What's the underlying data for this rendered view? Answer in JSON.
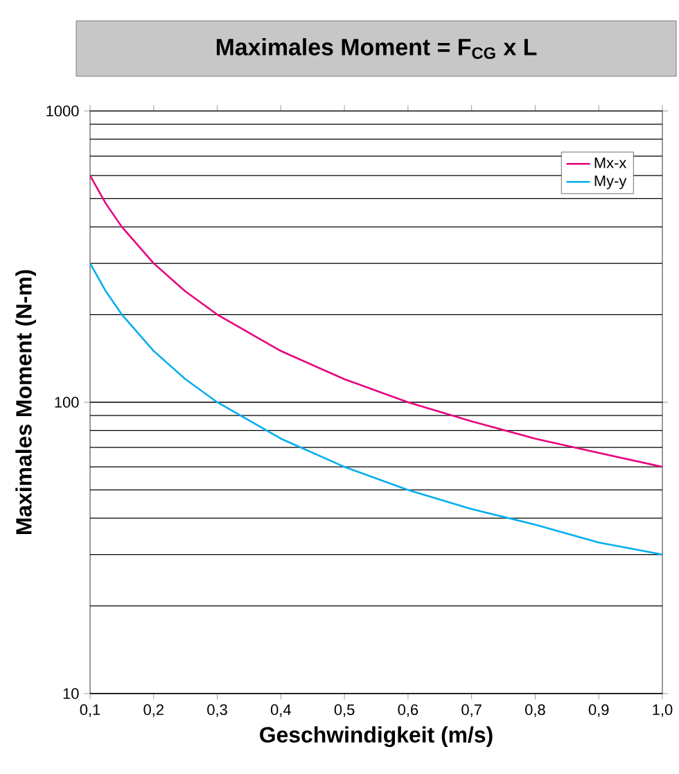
{
  "chart_data": {
    "type": "line",
    "title": "Maximales Moment = F$_{CG}$ x L",
    "xlabel": "Geschwindigkeit (m/s)",
    "ylabel": "Maximales Moment (N-m)",
    "x": [
      0.1,
      0.125,
      0.15,
      0.2,
      0.25,
      0.3,
      0.4,
      0.5,
      0.6,
      0.7,
      0.8,
      0.9,
      1.0
    ],
    "series": [
      {
        "name": "Mx-x",
        "color": "#e6007e",
        "values": [
          600,
          480,
          400,
          300,
          240,
          200,
          150,
          120,
          100,
          86,
          75,
          67,
          60
        ]
      },
      {
        "name": "My-y",
        "color": "#00aeef",
        "values": [
          300,
          240,
          200,
          150,
          120,
          100,
          75,
          60,
          50,
          43,
          38,
          33,
          30
        ]
      }
    ],
    "log": "y",
    "xlim": [
      0.1,
      1.0
    ],
    "ylim": [
      10,
      1000
    ],
    "xticks": [
      {
        "value": 0.1,
        "label": "0,1"
      },
      {
        "value": 0.2,
        "label": "0,2"
      },
      {
        "value": 0.3,
        "label": "0,3"
      },
      {
        "value": 0.4,
        "label": "0,4"
      },
      {
        "value": 0.5,
        "label": "0,5"
      },
      {
        "value": 0.6,
        "label": "0,6"
      },
      {
        "value": 0.7,
        "label": "0,7"
      },
      {
        "value": 0.8,
        "label": "0,8"
      },
      {
        "value": 0.9,
        "label": "0,9"
      },
      {
        "value": 1.0,
        "label": "1,0"
      }
    ],
    "yticks": [
      10,
      100,
      1000
    ],
    "grid": "y",
    "legend": "top right",
    "marker": "none",
    "line_style": "solid"
  }
}
